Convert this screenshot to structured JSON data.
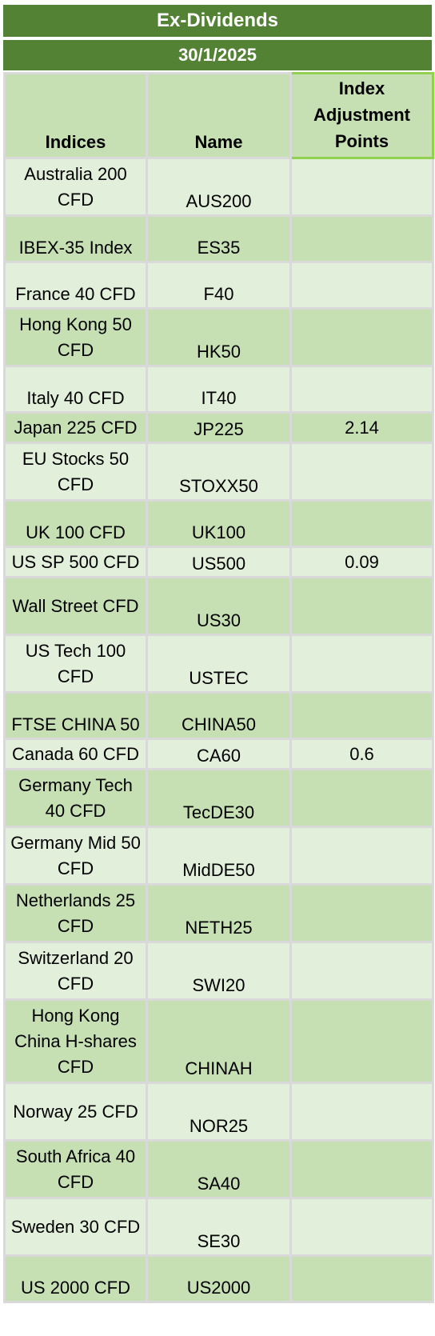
{
  "title": "Ex-Dividends",
  "date": "30/1/2025",
  "headers": {
    "indices": "Indices",
    "name": "Name",
    "points": "Index Adjustment Points"
  },
  "rows": [
    {
      "index": "Australia 200 CFD",
      "name": "AUS200",
      "points": ""
    },
    {
      "index": "IBEX-35 Index",
      "name": "ES35",
      "points": ""
    },
    {
      "index": "France 40 CFD",
      "name": "F40",
      "points": ""
    },
    {
      "index": "Hong Kong 50 CFD",
      "name": "HK50",
      "points": ""
    },
    {
      "index": "Italy 40 CFD",
      "name": "IT40",
      "points": ""
    },
    {
      "index": "Japan 225 CFD",
      "name": "JP225",
      "points": "2.14"
    },
    {
      "index": "EU Stocks 50 CFD",
      "name": "STOXX50",
      "points": ""
    },
    {
      "index": "UK 100 CFD",
      "name": "UK100",
      "points": ""
    },
    {
      "index": "US SP 500 CFD",
      "name": "US500",
      "points": "0.09"
    },
    {
      "index": "Wall Street CFD",
      "name": "US30",
      "points": ""
    },
    {
      "index": "US Tech 100 CFD",
      "name": "USTEC",
      "points": ""
    },
    {
      "index": "FTSE CHINA 50",
      "name": "CHINA50",
      "points": ""
    },
    {
      "index": "Canada 60 CFD",
      "name": "CA60",
      "points": "0.6"
    },
    {
      "index": "Germany Tech 40 CFD",
      "name": "TecDE30",
      "points": ""
    },
    {
      "index": "Germany Mid 50 CFD",
      "name": "MidDE50",
      "points": ""
    },
    {
      "index": "Netherlands 25 CFD",
      "name": "NETH25",
      "points": ""
    },
    {
      "index": "Switzerland 20 CFD",
      "name": "SWI20",
      "points": ""
    },
    {
      "index": "Hong Kong China H-shares CFD",
      "name": "CHINAH",
      "points": ""
    },
    {
      "index": "Norway 25 CFD",
      "name": "NOR25",
      "points": ""
    },
    {
      "index": "South Africa 40 CFD",
      "name": "SA40",
      "points": ""
    },
    {
      "index": "Sweden 30 CFD",
      "name": "SE30",
      "points": ""
    },
    {
      "index": "US 2000 CFD",
      "name": "US2000",
      "points": ""
    }
  ],
  "colors": {
    "banner": "#548235",
    "row_light": "#e2efda",
    "row_dark": "#c6e0b4",
    "highlight_border": "#92d050",
    "grid": "#d9d9d9"
  }
}
